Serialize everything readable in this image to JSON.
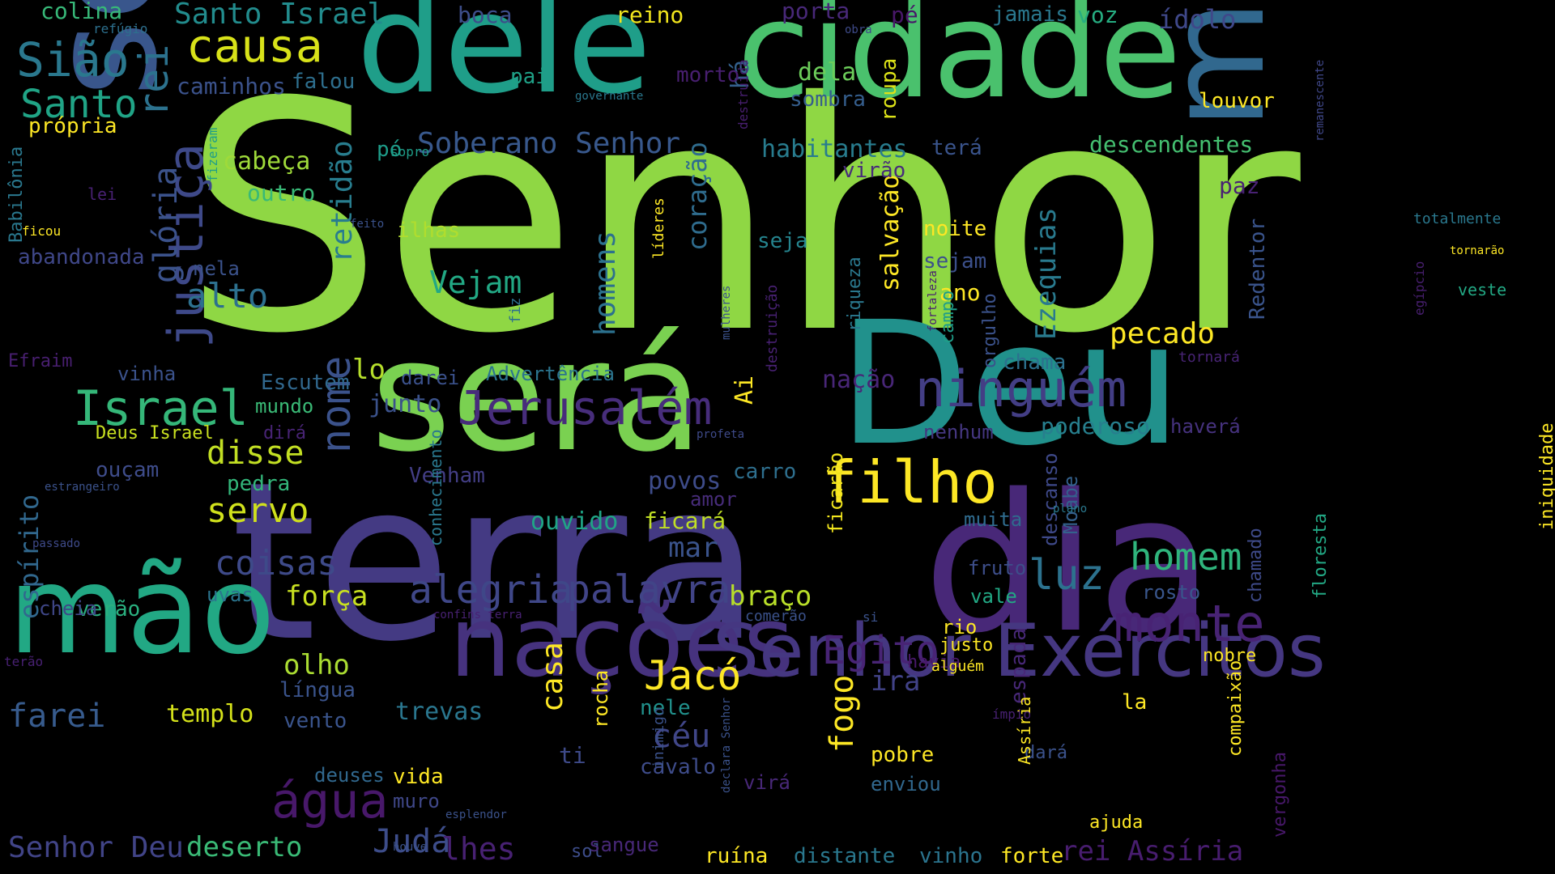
{
  "background": "#000000",
  "words": [
    {
      "text": "Senhor",
      "color": "#8fd744",
      "weight": 100
    },
    {
      "text": "será",
      "color": "#7ad151",
      "weight": 68
    },
    {
      "text": "terra",
      "color": "#443a83",
      "weight": 66
    },
    {
      "text": "dele",
      "color": "#1f9e89",
      "weight": 50
    },
    {
      "text": "cidade",
      "color": "#4ac16d",
      "weight": 50
    },
    {
      "text": "dia",
      "color": "#482878",
      "weight": 48
    },
    {
      "text": "Deu",
      "color": "#21918c",
      "weight": 46
    },
    {
      "text": "serão",
      "color": "#39568c",
      "weight": 44
    },
    {
      "text": "mim",
      "color": "#31688e",
      "weight": 42
    },
    {
      "text": "mão",
      "color": "#22a884",
      "weight": 38
    },
    {
      "text": "nações",
      "color": "#46327e",
      "weight": 28
    },
    {
      "text": "Senhor Exércitos",
      "color": "#453781",
      "weight": 26
    },
    {
      "text": "justiça",
      "color": "#3e4989",
      "weight": 22
    },
    {
      "text": "filho",
      "color": "#fde725",
      "weight": 18
    },
    {
      "text": "Israel",
      "color": "#35b779",
      "weight": 18
    },
    {
      "text": "Jerusalém",
      "color": "#472d7b",
      "weight": 18
    },
    {
      "text": "ninguém",
      "color": "#433e85",
      "weight": 18
    },
    {
      "text": "monte",
      "color": "#482374",
      "weight": 18
    },
    {
      "text": "rei",
      "color": "#2c728e",
      "weight": 16
    },
    {
      "text": "causa",
      "color": "#d8e219",
      "weight": 16
    },
    {
      "text": "Sião",
      "color": "#2a788e",
      "weight": 15
    },
    {
      "text": "Santo",
      "color": "#20a486",
      "weight": 14
    },
    {
      "text": "nome",
      "color": "#3b528b",
      "weight": 14
    },
    {
      "text": "alegria",
      "color": "#3f4788",
      "weight": 14
    },
    {
      "text": "palavra",
      "color": "#414487",
      "weight": 14
    },
    {
      "text": "luz",
      "color": "#2c728e",
      "weight": 14
    },
    {
      "text": "Jacó",
      "color": "#fde725",
      "weight": 14
    },
    {
      "text": "Egito",
      "color": "#482475",
      "weight": 14
    },
    {
      "text": "água",
      "color": "#48186a",
      "weight": 14
    },
    {
      "text": "homem",
      "color": "#2fb47c",
      "weight": 13
    },
    {
      "text": "glória",
      "color": "#3b528b",
      "weight": 12
    },
    {
      "text": "alto",
      "color": "#2d708e",
      "weight": 12
    },
    {
      "text": "servo",
      "color": "#d0e11c",
      "weight": 12
    },
    {
      "text": "disse",
      "color": "#c2df23",
      "weight": 12
    },
    {
      "text": "coisas",
      "color": "#3e4a89",
      "weight": 12
    },
    {
      "text": "espírito",
      "color": "#31688e",
      "weight": 12
    },
    {
      "text": "farei",
      "color": "#375b8d",
      "weight": 12
    },
    {
      "text": "Ezequias",
      "color": "#297a8e",
      "weight": 12
    },
    {
      "text": "homens",
      "color": "#2c718e",
      "weight": 12
    },
    {
      "text": "retidão",
      "color": "#287d8e",
      "weight": 12
    },
    {
      "text": "Vejam",
      "color": "#22a884",
      "weight": 12
    },
    {
      "text": "casa",
      "color": "#fde725",
      "weight": 12
    },
    {
      "text": "fogo",
      "color": "#fde725",
      "weight": 12
    },
    {
      "text": "céu",
      "color": "#404688",
      "weight": 12
    },
    {
      "text": "Judá",
      "color": "#3d4d8a",
      "weight": 11
    },
    {
      "text": "deserto",
      "color": "#3aba76",
      "weight": 11
    },
    {
      "text": "Senhor Deu",
      "color": "#414487",
      "weight": 11
    },
    {
      "text": "Santo Israel",
      "color": "#228c8d",
      "weight": 11
    },
    {
      "text": "rei Assíria",
      "color": "#481d6f",
      "weight": 10
    },
    {
      "text": "lhes",
      "color": "#482173",
      "weight": 10
    },
    {
      "text": "Soberano Senhor",
      "color": "#38588c",
      "weight": 10
    },
    {
      "text": "pecado",
      "color": "#fde725",
      "weight": 10
    },
    {
      "text": "força",
      "color": "#c8e020",
      "weight": 10
    },
    {
      "text": "braço",
      "color": "#b8de29",
      "weight": 10
    },
    {
      "text": "ira",
      "color": "#414287",
      "weight": 10
    },
    {
      "text": "coração",
      "color": "#2f6c8e",
      "weight": 10
    },
    {
      "text": "mar",
      "color": "#3a538b",
      "weight": 10
    },
    {
      "text": "junto",
      "color": "#3b528b",
      "weight": 10
    },
    {
      "text": "cabeça",
      "color": "#9fda3a",
      "weight": 9
    },
    {
      "text": "outro",
      "color": "#38b977",
      "weight": 9
    },
    {
      "text": "dela",
      "color": "#6ccd5a",
      "weight": 9
    },
    {
      "text": "habitantes",
      "color": "#287c8e",
      "weight": 9
    },
    {
      "text": "descendentes",
      "color": "#44bf70",
      "weight": 9
    },
    {
      "text": "lo",
      "color": "#b5de2b",
      "weight": 9
    },
    {
      "text": "nação",
      "color": "#482677",
      "weight": 9
    },
    {
      "text": "olho",
      "color": "#aadc32",
      "weight": 9
    },
    {
      "text": "templo",
      "color": "#d5e21a",
      "weight": 9
    },
    {
      "text": "trevas",
      "color": "#2a768e",
      "weight": 9
    },
    {
      "text": "ouvido",
      "color": "#20a486",
      "weight": 9
    },
    {
      "text": "ficará",
      "color": "#c0df25",
      "weight": 9
    },
    {
      "text": "povos",
      "color": "#3e4c8a",
      "weight": 9
    },
    {
      "text": "salvação",
      "color": "#fde725",
      "weight": 9
    },
    {
      "text": "poderoso",
      "color": "#277f8e",
      "weight": 9
    },
    {
      "text": "boca",
      "color": "#3d4e8a",
      "weight": 8
    },
    {
      "text": "reino",
      "color": "#f1e51d",
      "weight": 8
    },
    {
      "text": "colina",
      "color": "#37b878",
      "weight": 8
    },
    {
      "text": "porta",
      "color": "#482878",
      "weight": 8
    },
    {
      "text": "pé",
      "color": "#481769",
      "weight": 8
    },
    {
      "text": "jamais",
      "color": "#2a788e",
      "weight": 8
    },
    {
      "text": "voz",
      "color": "#26ad81",
      "weight": 8
    },
    {
      "text": "ídolo",
      "color": "#3f4889",
      "weight": 8
    },
    {
      "text": "há",
      "color": "#34618d",
      "weight": 8
    },
    {
      "text": "morto",
      "color": "#481f70",
      "weight": 8
    },
    {
      "text": "roupa",
      "color": "#dde318",
      "weight": 8
    },
    {
      "text": "sombra",
      "color": "#355e8d",
      "weight": 8
    },
    {
      "text": "louvor",
      "color": "#fde725",
      "weight": 8
    },
    {
      "text": "terá",
      "color": "#3a548c",
      "weight": 8
    },
    {
      "text": "virão",
      "color": "#472c7a",
      "weight": 8
    },
    {
      "text": "paz",
      "color": "#482173",
      "weight": 8
    },
    {
      "text": "Redentor",
      "color": "#3a548c",
      "weight": 8
    },
    {
      "text": "própria",
      "color": "#fde725",
      "weight": 8
    },
    {
      "text": "caminhos",
      "color": "#3b528b",
      "weight": 8
    },
    {
      "text": "falou",
      "color": "#2e6f8e",
      "weight": 8
    },
    {
      "text": "pai",
      "color": "#1fa187",
      "weight": 8
    },
    {
      "text": "pó",
      "color": "#1e9c89",
      "weight": 8
    },
    {
      "text": "ilhas",
      "color": "#b0dd2f",
      "weight": 8
    },
    {
      "text": "nela",
      "color": "#3b528b",
      "weight": 8
    },
    {
      "text": "seja",
      "color": "#25848e",
      "weight": 8
    },
    {
      "text": "noite",
      "color": "#fde725",
      "weight": 8
    },
    {
      "text": "sejam",
      "color": "#3c508b",
      "weight": 8
    },
    {
      "text": "ano",
      "color": "#fde725",
      "weight": 8
    },
    {
      "text": "abandonada",
      "color": "#3f4788",
      "weight": 8
    },
    {
      "text": "vinha",
      "color": "#3b528b",
      "weight": 8
    },
    {
      "text": "Escutem",
      "color": "#31688e",
      "weight": 8
    },
    {
      "text": "mundo",
      "color": "#3aba76",
      "weight": 8
    },
    {
      "text": "darei",
      "color": "#3b518b",
      "weight": 8
    },
    {
      "text": "Advertência",
      "color": "#2b748e",
      "weight": 8
    },
    {
      "text": "chama",
      "color": "#2c718e",
      "weight": 8
    },
    {
      "text": "tornará",
      "color": "#482475",
      "weight": 6
    },
    {
      "text": "haverá",
      "color": "#46327e",
      "weight": 8
    },
    {
      "text": "nenhum",
      "color": "#453781",
      "weight": 8
    },
    {
      "text": "Deus Israel",
      "color": "#c8e020",
      "weight": 7
    },
    {
      "text": "dirá",
      "color": "#482475",
      "weight": 7
    },
    {
      "text": "ouçam",
      "color": "#3e4c8a",
      "weight": 8
    },
    {
      "text": "pedra",
      "color": "#33b67a",
      "weight": 8
    },
    {
      "text": "Venham",
      "color": "#433e85",
      "weight": 8
    },
    {
      "text": "carro",
      "color": "#2e6f8e",
      "weight": 8
    },
    {
      "text": "amor",
      "color": "#472c7a",
      "weight": 8
    },
    {
      "text": "descanso",
      "color": "#3e4989",
      "weight": 8
    },
    {
      "text": "ficarão",
      "color": "#f1e51d",
      "weight": 8
    },
    {
      "text": "Ai",
      "color": "#fde725",
      "weight": 8
    },
    {
      "text": "muita",
      "color": "#2f6b8e",
      "weight": 8
    },
    {
      "text": "Moabe",
      "color": "#34618d",
      "weight": 8
    },
    {
      "text": "fruto",
      "color": "#3d4e8a",
      "weight": 8
    },
    {
      "text": "vale",
      "color": "#22a884",
      "weight": 8
    },
    {
      "text": "rosto",
      "color": "#39568c",
      "weight": 8
    },
    {
      "text": "chamado",
      "color": "#3e4a89",
      "weight": 7
    },
    {
      "text": "uvas",
      "color": "#2b758e",
      "weight": 8
    },
    {
      "text": "verão",
      "color": "#2ab07f",
      "weight": 8
    },
    {
      "text": "cheia",
      "color": "#3f4788",
      "weight": 8
    },
    {
      "text": "rio",
      "color": "#fde725",
      "weight": 8
    },
    {
      "text": "justo",
      "color": "#fde725",
      "weight": 7
    },
    {
      "text": "havia",
      "color": "#48186a",
      "weight": 7
    },
    {
      "text": "nobre",
      "color": "#fde725",
      "weight": 7
    },
    {
      "text": "la",
      "color": "#fde725",
      "weight": 8
    },
    {
      "text": "língua",
      "color": "#3a538b",
      "weight": 8
    },
    {
      "text": "vento",
      "color": "#3a548c",
      "weight": 8
    },
    {
      "text": "nele",
      "color": "#21918c",
      "weight": 8
    },
    {
      "text": "rocha",
      "color": "#fde725",
      "weight": 8
    },
    {
      "text": "cavalo",
      "color": "#3e4c8a",
      "weight": 8
    },
    {
      "text": "virá",
      "color": "#482878",
      "weight": 8
    },
    {
      "text": "enviou",
      "color": "#31688e",
      "weight": 8
    },
    {
      "text": "pobre",
      "color": "#fde725",
      "weight": 8
    },
    {
      "text": "dará",
      "color": "#3b528b",
      "weight": 7
    },
    {
      "text": "ajuda",
      "color": "#fde725",
      "weight": 7
    },
    {
      "text": "vergonha",
      "color": "#48186a",
      "weight": 7
    },
    {
      "text": "compaixão",
      "color": "#fde725",
      "weight": 7
    },
    {
      "text": "espada",
      "color": "#482878",
      "weight": 8
    },
    {
      "text": "Assíria",
      "color": "#fde725",
      "weight": 7
    },
    {
      "text": "floresta",
      "color": "#22a884",
      "weight": 7
    },
    {
      "text": "deuses",
      "color": "#31688e",
      "weight": 8
    },
    {
      "text": "vida",
      "color": "#fde725",
      "weight": 8
    },
    {
      "text": "muro",
      "color": "#3f4788",
      "weight": 8
    },
    {
      "text": "ti",
      "color": "#3e4a89",
      "weight": 8
    },
    {
      "text": "sol",
      "color": "#3d4d8a",
      "weight": 7
    },
    {
      "text": "sangue",
      "color": "#482878",
      "weight": 8
    },
    {
      "text": "ruína",
      "color": "#fde725",
      "weight": 8
    },
    {
      "text": "distante",
      "color": "#2a788e",
      "weight": 8
    },
    {
      "text": "vinho",
      "color": "#2b748e",
      "weight": 8
    },
    {
      "text": "forte",
      "color": "#fde725",
      "weight": 8
    },
    {
      "text": "refúgio",
      "color": "#2d708e",
      "weight": 5
    },
    {
      "text": "obra",
      "color": "#3e4a89",
      "weight": 5
    },
    {
      "text": "governante",
      "color": "#2a788e",
      "weight": 5
    },
    {
      "text": "remanescente",
      "color": "#3f4788",
      "weight": 5
    },
    {
      "text": "Babilônia",
      "color": "#2a788e",
      "weight": 6
    },
    {
      "text": "fizeram",
      "color": "#1f9e89",
      "weight": 5
    },
    {
      "text": "sopro",
      "color": "#1f9e89",
      "weight": 5
    },
    {
      "text": "lei",
      "color": "#482173",
      "weight": 5
    },
    {
      "text": "feito",
      "color": "#3b528b",
      "weight": 5
    },
    {
      "text": "ficou",
      "color": "#fde725",
      "weight": 5
    },
    {
      "text": "líderes",
      "color": "#fde725",
      "weight": 5
    },
    {
      "text": "fiz",
      "color": "#2e6f8e",
      "weight": 5
    },
    {
      "text": "mulheres",
      "color": "#3b528b",
      "weight": 5
    },
    {
      "text": "destruição",
      "color": "#482173",
      "weight": 5
    },
    {
      "text": "destruída",
      "color": "#481f70",
      "weight": 5
    },
    {
      "text": "riqueza",
      "color": "#2a788e",
      "weight": 6
    },
    {
      "text": "fortaleza",
      "color": "#481f70",
      "weight": 5
    },
    {
      "text": "campo",
      "color": "#1f9e89",
      "weight": 6
    },
    {
      "text": "orgulho",
      "color": "#3b528b",
      "weight": 6
    },
    {
      "text": "egípcio",
      "color": "#481f70",
      "weight": 5
    },
    {
      "text": "totalmente",
      "color": "#2a788e",
      "weight": 5
    },
    {
      "text": "tornarão",
      "color": "#fde725",
      "weight": 5
    },
    {
      "text": "veste",
      "color": "#22a884",
      "weight": 5
    },
    {
      "text": "iniquidade",
      "color": "#fde725",
      "weight": 6
    },
    {
      "text": "Efraim",
      "color": "#481f70",
      "weight": 6
    },
    {
      "text": "estrangeiro",
      "color": "#3b528b",
      "weight": 5
    },
    {
      "text": "conhecimento",
      "color": "#2a788e",
      "weight": 5
    },
    {
      "text": "profeta",
      "color": "#3e4a89",
      "weight": 5
    },
    {
      "text": "plano",
      "color": "#2a788e",
      "weight": 5
    },
    {
      "text": "passado",
      "color": "#3e4a89",
      "weight": 5
    },
    {
      "text": "confins terra",
      "color": "#482173",
      "weight": 5
    },
    {
      "text": "comerão",
      "color": "#3b528b",
      "weight": 5
    },
    {
      "text": "si",
      "color": "#3b528b",
      "weight": 5
    },
    {
      "text": "terão",
      "color": "#482173",
      "weight": 5
    },
    {
      "text": "alguém",
      "color": "#fde725",
      "weight": 5
    },
    {
      "text": "inimigo",
      "color": "#3b528b",
      "weight": 5
    },
    {
      "text": "declara Senhor",
      "color": "#3b528b",
      "weight": 5
    },
    {
      "text": "ímpio",
      "color": "#482173",
      "weight": 5
    },
    {
      "text": "esplendor",
      "color": "#3b528b",
      "weight": 5
    },
    {
      "text": "houve",
      "color": "#3b528b",
      "weight": 5
    }
  ]
}
